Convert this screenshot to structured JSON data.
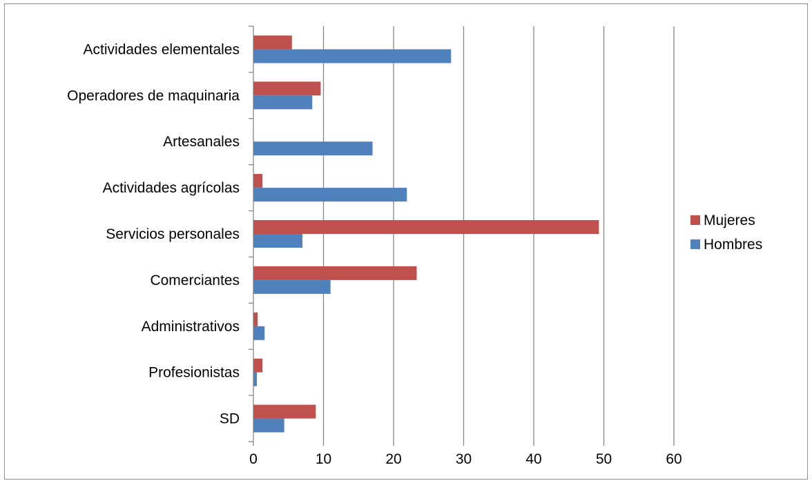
{
  "chart_data": {
    "type": "bar",
    "orientation": "horizontal",
    "categories": [
      "Actividades elementales",
      "Operadores de maquinaria",
      "Artesanales",
      "Actividades agrícolas",
      "Servicios personales",
      "Comerciantes",
      "Administrativos",
      "Profesionistas",
      "SD"
    ],
    "series": [
      {
        "name": "Mujeres",
        "color": "#c0504d",
        "values": [
          5.5,
          9.6,
          0,
          1.3,
          49.3,
          23.3,
          0.6,
          1.3,
          8.9
        ]
      },
      {
        "name": "Hombres",
        "color": "#4f81bd",
        "values": [
          28.2,
          8.4,
          17.0,
          21.9,
          7.0,
          11.0,
          1.6,
          0.5,
          4.4
        ]
      }
    ],
    "xlim": [
      0,
      60
    ],
    "xticks": [
      "0",
      "10",
      "20",
      "30",
      "40",
      "50",
      "60"
    ],
    "grid": true,
    "legend": "right",
    "title": "",
    "xlabel": "",
    "ylabel": ""
  }
}
